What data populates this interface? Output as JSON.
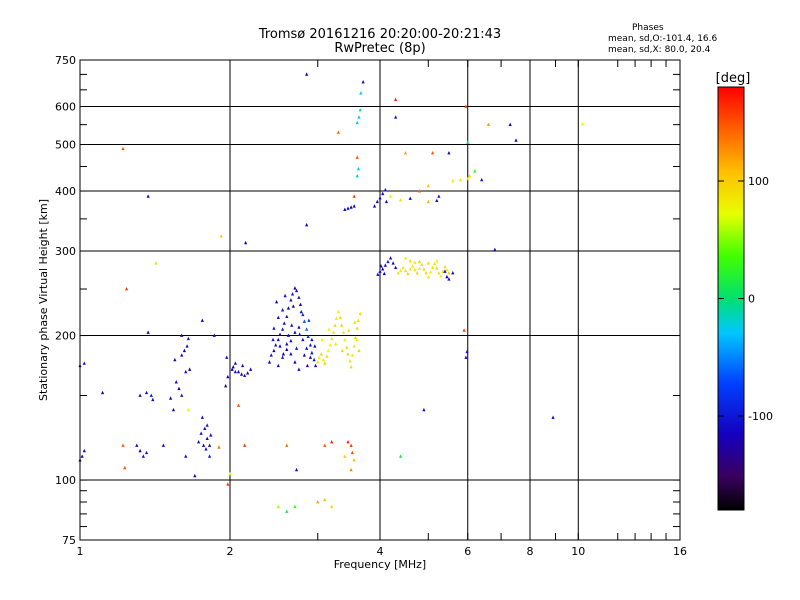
{
  "chart_data": {
    "type": "scatter",
    "title": "Tromsø 20161216 20:20:00-20:21:43",
    "subtitle": "RwPretec (8p)",
    "xlabel": "Frequency [MHz]",
    "ylabel": "Stationary phase Virtual Height [km]",
    "x_scale": "log",
    "y_scale": "log",
    "xlim": [
      1,
      16
    ],
    "ylim": [
      75,
      750
    ],
    "x_ticks": [
      "1",
      "2",
      "4",
      "6",
      "8",
      "10",
      "16"
    ],
    "y_ticks": [
      "75",
      "100",
      "200",
      "300",
      "400",
      "500",
      "600",
      "750"
    ],
    "grid": true,
    "phase_box": {
      "heading": "Phases",
      "line1": "mean, sd,O:-101.4, 16.6",
      "line2": "mean, sd,X:  80.0, 20.4"
    },
    "colorbar": {
      "label": "[deg]",
      "range": [
        -180,
        180
      ],
      "ticks": [
        "100",
        "0",
        "-100"
      ]
    },
    "points": [
      [
        1.0,
        173,
        -110
      ],
      [
        1.02,
        175,
        -105
      ],
      [
        1.0,
        110,
        -115
      ],
      [
        1.02,
        115,
        -110
      ],
      [
        1.01,
        112,
        -120
      ],
      [
        1.11,
        152,
        -115
      ],
      [
        1.22,
        490,
        150
      ],
      [
        1.24,
        250,
        160
      ],
      [
        1.22,
        118,
        150
      ],
      [
        1.23,
        106,
        150
      ],
      [
        1.3,
        118,
        -110
      ],
      [
        1.32,
        115,
        -120
      ],
      [
        1.34,
        112,
        -105
      ],
      [
        1.36,
        114,
        -100
      ],
      [
        1.32,
        150,
        -120
      ],
      [
        1.36,
        152,
        -110
      ],
      [
        1.39,
        150,
        -100
      ],
      [
        1.4,
        147,
        -120
      ],
      [
        1.37,
        390,
        -115
      ],
      [
        1.37,
        203,
        -130
      ],
      [
        1.42,
        283,
        60
      ],
      [
        1.47,
        118,
        -105
      ],
      [
        1.52,
        148,
        -110
      ],
      [
        1.54,
        140,
        -120
      ],
      [
        1.56,
        160,
        -110
      ],
      [
        1.58,
        155,
        -115
      ],
      [
        1.6,
        150,
        -100
      ],
      [
        1.55,
        178,
        -120
      ],
      [
        1.6,
        182,
        -105
      ],
      [
        1.62,
        186,
        -115
      ],
      [
        1.64,
        190,
        -110
      ],
      [
        1.6,
        200,
        -130
      ],
      [
        1.65,
        197,
        -100
      ],
      [
        1.66,
        170,
        -120
      ],
      [
        1.63,
        168,
        -110
      ],
      [
        1.63,
        112,
        -110
      ],
      [
        1.65,
        140,
        70
      ],
      [
        1.7,
        102,
        -120
      ],
      [
        1.73,
        120,
        -110
      ],
      [
        1.75,
        125,
        -100
      ],
      [
        1.78,
        128,
        -105
      ],
      [
        1.8,
        122,
        -115
      ],
      [
        1.82,
        118,
        -120
      ],
      [
        1.76,
        135,
        -110
      ],
      [
        1.8,
        130,
        -100
      ],
      [
        1.83,
        124,
        -110
      ],
      [
        1.77,
        118,
        -115
      ],
      [
        1.82,
        112,
        -105
      ],
      [
        1.79,
        116,
        -110
      ],
      [
        1.76,
        215,
        -120
      ],
      [
        1.86,
        200,
        -115
      ],
      [
        1.9,
        117,
        140
      ],
      [
        1.92,
        322,
        100
      ],
      [
        1.98,
        98,
        160
      ],
      [
        1.96,
        157,
        -130
      ],
      [
        2.0,
        103,
        70
      ],
      [
        1.97,
        180,
        -110
      ],
      [
        2.02,
        170,
        -115
      ],
      [
        2.05,
        168,
        -105
      ],
      [
        2.08,
        168,
        -110
      ],
      [
        2.11,
        166,
        -120
      ],
      [
        2.14,
        165,
        -100
      ],
      [
        2.17,
        167,
        -110
      ],
      [
        2.2,
        170,
        -115
      ],
      [
        2.05,
        175,
        -110
      ],
      [
        2.12,
        173,
        -105
      ],
      [
        1.98,
        164,
        -120
      ],
      [
        2.03,
        172,
        -115
      ],
      [
        2.08,
        143,
        150
      ],
      [
        2.14,
        118,
        160
      ],
      [
        2.15,
        312,
        -115
      ],
      [
        2.4,
        176,
        -110
      ],
      [
        2.42,
        182,
        -100
      ],
      [
        2.45,
        186,
        -115
      ],
      [
        2.47,
        191,
        -105
      ],
      [
        2.5,
        196,
        -110
      ],
      [
        2.52,
        201,
        -120
      ],
      [
        2.55,
        206,
        -100
      ],
      [
        2.57,
        212,
        -110
      ],
      [
        2.6,
        219,
        -105
      ],
      [
        2.62,
        228,
        -115
      ],
      [
        2.65,
        237,
        -110
      ],
      [
        2.67,
        244,
        -100
      ],
      [
        2.7,
        251,
        -120
      ],
      [
        2.72,
        248,
        -110
      ],
      [
        2.75,
        240,
        -105
      ],
      [
        2.77,
        232,
        -115
      ],
      [
        2.8,
        221,
        -90
      ],
      [
        2.82,
        214,
        -70
      ],
      [
        2.85,
        206,
        -60
      ],
      [
        2.87,
        199,
        -80
      ],
      [
        2.9,
        191,
        -100
      ],
      [
        2.92,
        184,
        -110
      ],
      [
        2.95,
        178,
        -105
      ],
      [
        2.97,
        173,
        -115
      ],
      [
        2.45,
        207,
        -110
      ],
      [
        2.5,
        218,
        -105
      ],
      [
        2.55,
        226,
        -100
      ],
      [
        2.6,
        192,
        -120
      ],
      [
        2.65,
        183,
        -110
      ],
      [
        2.7,
        176,
        -115
      ],
      [
        2.75,
        170,
        -105
      ],
      [
        2.5,
        173,
        -110
      ],
      [
        2.55,
        180,
        -100
      ],
      [
        2.6,
        187,
        -115
      ],
      [
        2.65,
        195,
        -110
      ],
      [
        2.7,
        203,
        -105
      ],
      [
        2.75,
        208,
        -120
      ],
      [
        2.8,
        196,
        -110
      ],
      [
        2.85,
        188,
        -100
      ],
      [
        2.9,
        180,
        -115
      ],
      [
        2.48,
        235,
        -110
      ],
      [
        2.58,
        242,
        -105
      ],
      [
        2.68,
        230,
        -115
      ],
      [
        2.78,
        224,
        -110
      ],
      [
        2.88,
        215,
        -80
      ],
      [
        2.52,
        190,
        -115
      ],
      [
        2.62,
        200,
        -110
      ],
      [
        2.72,
        188,
        -100
      ],
      [
        2.82,
        182,
        -115
      ],
      [
        2.92,
        196,
        -110
      ],
      [
        2.44,
        196,
        -105
      ],
      [
        2.56,
        183,
        -120
      ],
      [
        2.66,
        210,
        -110
      ],
      [
        2.76,
        201,
        -100
      ],
      [
        2.86,
        173,
        -110
      ],
      [
        2.96,
        190,
        -115
      ],
      [
        2.5,
        88,
        60
      ],
      [
        2.6,
        86,
        10
      ],
      [
        2.7,
        88,
        30
      ],
      [
        2.72,
        105,
        -110
      ],
      [
        2.85,
        700,
        -115
      ],
      [
        2.85,
        340,
        -120
      ],
      [
        2.6,
        118,
        140
      ],
      [
        3.0,
        176,
        90
      ],
      [
        3.02,
        180,
        80
      ],
      [
        3.05,
        183,
        95
      ],
      [
        3.08,
        178,
        85
      ],
      [
        3.1,
        175,
        100
      ],
      [
        3.13,
        181,
        90
      ],
      [
        3.15,
        186,
        75
      ],
      [
        3.18,
        191,
        80
      ],
      [
        3.2,
        197,
        85
      ],
      [
        3.23,
        203,
        90
      ],
      [
        3.25,
        210,
        95
      ],
      [
        3.27,
        217,
        85
      ],
      [
        3.3,
        224,
        80
      ],
      [
        3.33,
        218,
        90
      ],
      [
        3.35,
        210,
        95
      ],
      [
        3.38,
        203,
        85
      ],
      [
        3.4,
        196,
        80
      ],
      [
        3.43,
        189,
        90
      ],
      [
        3.45,
        183,
        95
      ],
      [
        3.48,
        177,
        85
      ],
      [
        3.5,
        172,
        90
      ],
      [
        3.52,
        182,
        80
      ],
      [
        3.55,
        190,
        85
      ],
      [
        3.57,
        198,
        90
      ],
      [
        3.6,
        207,
        95
      ],
      [
        3.62,
        215,
        85
      ],
      [
        3.65,
        222,
        90
      ],
      [
        3.6,
        196,
        80
      ],
      [
        3.63,
        186,
        95
      ],
      [
        3.06,
        196,
        70
      ],
      [
        3.16,
        206,
        75
      ],
      [
        3.26,
        192,
        80
      ],
      [
        3.36,
        186,
        95
      ],
      [
        3.46,
        205,
        85
      ],
      [
        3.56,
        213,
        90
      ],
      [
        3.2,
        120,
        170
      ],
      [
        3.1,
        118,
        150
      ],
      [
        3.0,
        90,
        120
      ],
      [
        3.1,
        91,
        110
      ],
      [
        3.2,
        88,
        95
      ],
      [
        3.45,
        120,
        170
      ],
      [
        3.5,
        118,
        160
      ],
      [
        3.52,
        114,
        150
      ],
      [
        3.4,
        112,
        100
      ],
      [
        3.5,
        105,
        130
      ],
      [
        3.55,
        110,
        110
      ],
      [
        3.6,
        470,
        150
      ],
      [
        3.55,
        390,
        160
      ],
      [
        3.4,
        366,
        -110
      ],
      [
        3.45,
        368,
        -105
      ],
      [
        3.5,
        370,
        -115
      ],
      [
        3.55,
        372,
        -110
      ],
      [
        3.6,
        430,
        -20
      ],
      [
        3.62,
        445,
        -20
      ],
      [
        3.6,
        555,
        -15
      ],
      [
        3.63,
        570,
        -30
      ],
      [
        3.65,
        590,
        -10
      ],
      [
        3.66,
        640,
        -20
      ],
      [
        3.7,
        675,
        -110
      ],
      [
        3.3,
        530,
        140
      ],
      [
        3.9,
        372,
        -110
      ],
      [
        3.95,
        380,
        -120
      ],
      [
        4.0,
        387,
        -115
      ],
      [
        4.05,
        395,
        -110
      ],
      [
        4.1,
        402,
        -105
      ],
      [
        4.12,
        380,
        -110
      ],
      [
        3.96,
        268,
        -110
      ],
      [
        4.0,
        272,
        -105
      ],
      [
        4.05,
        275,
        -115
      ],
      [
        4.1,
        280,
        -110
      ],
      [
        4.15,
        285,
        -100
      ],
      [
        4.2,
        290,
        -120
      ],
      [
        4.25,
        283,
        -110
      ],
      [
        4.3,
        277,
        -105
      ],
      [
        4.02,
        279,
        -110
      ],
      [
        4.08,
        269,
        -115
      ],
      [
        4.35,
        270,
        90
      ],
      [
        4.4,
        273,
        80
      ],
      [
        4.45,
        277,
        85
      ],
      [
        4.5,
        273,
        90
      ],
      [
        4.55,
        269,
        95
      ],
      [
        4.6,
        275,
        80
      ],
      [
        4.65,
        279,
        85
      ],
      [
        4.7,
        274,
        90
      ],
      [
        4.75,
        270,
        95
      ],
      [
        4.8,
        276,
        80
      ],
      [
        4.85,
        281,
        85
      ],
      [
        4.9,
        275,
        90
      ],
      [
        4.95,
        270,
        95
      ],
      [
        5.0,
        265,
        85
      ],
      [
        5.05,
        271,
        80
      ],
      [
        5.1,
        277,
        90
      ],
      [
        5.15,
        282,
        85
      ],
      [
        5.2,
        276,
        95
      ],
      [
        5.25,
        270,
        90
      ],
      [
        5.3,
        266,
        80
      ],
      [
        5.35,
        272,
        85
      ],
      [
        5.4,
        278,
        90
      ],
      [
        5.45,
        274,
        80
      ],
      [
        5.5,
        270,
        95
      ],
      [
        4.5,
        290,
        80
      ],
      [
        4.6,
        286,
        90
      ],
      [
        4.7,
        284,
        85
      ],
      [
        4.8,
        285,
        95
      ],
      [
        5.0,
        283,
        90
      ],
      [
        5.2,
        286,
        80
      ],
      [
        5.4,
        272,
        -110
      ],
      [
        5.45,
        265,
        -115
      ],
      [
        5.5,
        262,
        -105
      ],
      [
        5.6,
        270,
        -110
      ],
      [
        4.2,
        390,
        80
      ],
      [
        4.4,
        383,
        90
      ],
      [
        4.6,
        386,
        -110
      ],
      [
        4.8,
        400,
        140
      ],
      [
        5.0,
        410,
        100
      ],
      [
        5.2,
        382,
        -110
      ],
      [
        5.25,
        390,
        -100
      ],
      [
        5.6,
        420,
        80
      ],
      [
        5.8,
        422,
        85
      ],
      [
        6.0,
        424,
        90
      ],
      [
        6.05,
        430,
        95
      ],
      [
        6.2,
        440,
        30
      ],
      [
        6.4,
        422,
        -110
      ],
      [
        5.1,
        480,
        150
      ],
      [
        4.5,
        480,
        120
      ],
      [
        5.5,
        480,
        -120
      ],
      [
        4.3,
        570,
        -110
      ],
      [
        4.3,
        620,
        170
      ],
      [
        5.95,
        600,
        160
      ],
      [
        6.0,
        505,
        -10
      ],
      [
        5.0,
        380,
        110
      ],
      [
        4.4,
        112,
        10
      ],
      [
        4.9,
        140,
        -110
      ],
      [
        5.95,
        180,
        -110
      ],
      [
        5.98,
        185,
        -105
      ],
      [
        5.9,
        205,
        160
      ],
      [
        6.8,
        302,
        -110
      ],
      [
        6.6,
        550,
        120
      ],
      [
        7.3,
        550,
        -110
      ],
      [
        7.5,
        510,
        -115
      ],
      [
        8.9,
        135,
        -110
      ],
      [
        10.2,
        552,
        70
      ]
    ]
  }
}
